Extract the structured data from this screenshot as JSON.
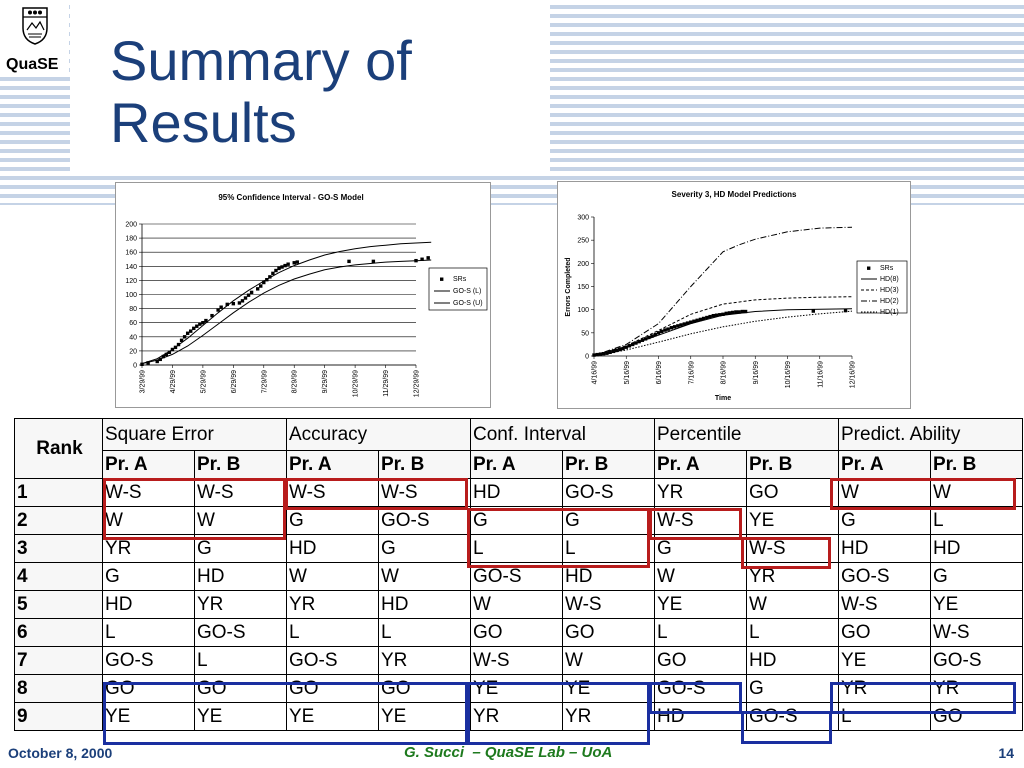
{
  "logo": {
    "text": "QuaSE"
  },
  "slide": {
    "title_line1": "Summary of",
    "title_line2": "Results"
  },
  "chart_data": [
    {
      "type": "line",
      "title": "95% Confidence Interval - GO-S Model",
      "x_ticks": [
        "3/29/99",
        "4/29/99",
        "5/29/99",
        "6/29/99",
        "7/29/99",
        "8/29/99",
        "9/29/99",
        "10/29/99",
        "11/29/99",
        "12/29/99"
      ],
      "y_ticks": [
        0,
        20,
        40,
        60,
        80,
        100,
        120,
        140,
        160,
        180,
        200
      ],
      "ylim": [
        0,
        200
      ],
      "grid": true,
      "legend_position": "right",
      "legend": [
        "SRs",
        "GO-S (L)",
        "GO-S (U)"
      ],
      "series": [
        {
          "name": "SRs",
          "kind": "scatter",
          "x": [
            0.0,
            0.2,
            0.5,
            0.6,
            0.7,
            0.8,
            0.9,
            1.0,
            1.1,
            1.2,
            1.3,
            1.4,
            1.5,
            1.6,
            1.7,
            1.8,
            1.9,
            2.0,
            2.1,
            2.3,
            2.5,
            2.6,
            2.8,
            3.0,
            3.2,
            3.3,
            3.4,
            3.5,
            3.6,
            3.8,
            3.9,
            4.0,
            4.1,
            4.2,
            4.3,
            4.4,
            4.5,
            4.6,
            4.7,
            4.8,
            5.0,
            5.1,
            6.8,
            7.6,
            9.0,
            9.2,
            9.4
          ],
          "values": [
            1,
            3,
            5,
            8,
            12,
            15,
            18,
            22,
            25,
            29,
            35,
            40,
            45,
            48,
            52,
            55,
            58,
            60,
            63,
            70,
            78,
            82,
            86,
            87,
            88,
            91,
            95,
            99,
            103,
            108,
            112,
            117,
            121,
            125,
            130,
            134,
            137,
            139,
            141,
            143,
            145,
            146,
            147,
            147,
            148,
            150,
            152
          ]
        },
        {
          "name": "GO-S (L)",
          "kind": "line",
          "x": [
            0,
            0.5,
            1,
            1.5,
            2,
            2.5,
            3,
            3.5,
            4,
            4.5,
            5,
            5.5,
            6,
            6.5,
            7,
            7.5,
            8,
            8.5,
            9,
            9.5
          ],
          "values": [
            2,
            7,
            15,
            27,
            42,
            58,
            74,
            89,
            102,
            113,
            122,
            129,
            135,
            139,
            142,
            144,
            146,
            147,
            148,
            149
          ]
        },
        {
          "name": "GO-S (U)",
          "kind": "line",
          "x": [
            0,
            0.5,
            1,
            1.5,
            2,
            2.5,
            3,
            3.5,
            4,
            4.5,
            5,
            5.5,
            6,
            6.5,
            7,
            7.5,
            8,
            8.5,
            9,
            9.5
          ],
          "values": [
            2,
            9,
            22,
            38,
            56,
            74,
            91,
            106,
            119,
            131,
            141,
            149,
            156,
            161,
            165,
            168,
            170,
            172,
            173,
            174
          ]
        }
      ]
    },
    {
      "type": "line",
      "title": "Severity 3, HD Model Predictions",
      "xlabel": "Time",
      "ylabel": "Errors Completed",
      "x_ticks": [
        "4/16/99",
        "5/16/99",
        "6/16/99",
        "7/16/99",
        "8/16/99",
        "9/16/99",
        "10/16/99",
        "11/16/99",
        "12/16/99"
      ],
      "y_ticks": [
        0,
        50,
        100,
        150,
        200,
        250,
        300
      ],
      "ylim": [
        0,
        300
      ],
      "legend_position": "right",
      "legend": [
        "SRs",
        "HD(8)",
        "HD(3)",
        "HD(2)",
        "HD(1)"
      ],
      "series": [
        {
          "name": "SRs",
          "kind": "scatter",
          "x": [
            0.0,
            0.1,
            0.2,
            0.3,
            0.4,
            0.5,
            0.6,
            0.7,
            0.8,
            0.9,
            1.0,
            1.1,
            1.2,
            1.3,
            1.4,
            1.5,
            1.6,
            1.7,
            1.8,
            1.9,
            2.0,
            2.1,
            2.2,
            2.3,
            2.4,
            2.5,
            2.6,
            2.7,
            2.8,
            2.9,
            3.0,
            3.1,
            3.2,
            3.3,
            3.4,
            3.5,
            3.6,
            3.7,
            3.8,
            3.9,
            4.0,
            4.1,
            4.2,
            4.3,
            4.4,
            4.5,
            4.6,
            4.7,
            6.8,
            7.8
          ],
          "values": [
            2,
            3,
            4,
            5,
            6,
            8,
            10,
            12,
            14,
            16,
            19,
            22,
            25,
            28,
            31,
            34,
            37,
            40,
            43,
            46,
            50,
            53,
            56,
            58,
            61,
            63,
            65,
            67,
            69,
            71,
            73,
            75,
            77,
            79,
            81,
            83,
            85,
            87,
            88,
            89,
            90,
            92,
            93,
            94,
            95,
            95,
            96,
            96,
            97,
            98
          ]
        },
        {
          "name": "HD(8)",
          "kind": "line",
          "x": [
            0,
            1,
            2,
            3,
            4,
            5,
            6,
            7,
            8
          ],
          "values": [
            1,
            20,
            45,
            70,
            88,
            96,
            100,
            101,
            102
          ]
        },
        {
          "name": "HD(3)",
          "kind": "line",
          "x": [
            0,
            1,
            2,
            3,
            4,
            5,
            6,
            7,
            8
          ],
          "values": [
            1,
            22,
            55,
            90,
            112,
            121,
            125,
            127,
            128
          ]
        },
        {
          "name": "HD(2)",
          "kind": "line",
          "x": [
            0,
            1,
            2,
            3,
            4,
            4.5,
            5,
            6,
            7,
            8
          ],
          "values": [
            1,
            25,
            70,
            150,
            225,
            240,
            252,
            268,
            276,
            278
          ]
        },
        {
          "name": "HD(1)",
          "kind": "line",
          "x": [
            0,
            1,
            2,
            3,
            4,
            5,
            6,
            7,
            8
          ],
          "values": [
            1,
            13,
            30,
            48,
            63,
            75,
            84,
            91,
            97
          ]
        }
      ]
    }
  ],
  "table": {
    "corner": "Rank",
    "groups": [
      "Square Error",
      "Accuracy",
      "Conf. Interval",
      "Percentile",
      "Predict. Ability"
    ],
    "sub_a": "Pr. A",
    "sub_b": "Pr. B",
    "rows": [
      {
        "rank": "1",
        "cells": [
          "W-S",
          "W-S",
          "W-S",
          "W-S",
          "HD",
          "GO-S",
          "YR",
          "GO",
          "W",
          "W"
        ]
      },
      {
        "rank": "2",
        "cells": [
          "W",
          "W",
          "G",
          "GO-S",
          "G",
          "G",
          "W-S",
          "YE",
          "G",
          "L"
        ]
      },
      {
        "rank": "3",
        "cells": [
          "YR",
          "G",
          "HD",
          "G",
          "L",
          "L",
          "G",
          "W-S",
          "HD",
          "HD"
        ]
      },
      {
        "rank": "4",
        "cells": [
          "G",
          "HD",
          "W",
          "W",
          "GO-S",
          "HD",
          "W",
          "YR",
          "GO-S",
          "G"
        ]
      },
      {
        "rank": "5",
        "cells": [
          "HD",
          "YR",
          "YR",
          "HD",
          "W",
          "W-S",
          "YE",
          "W",
          "W-S",
          "YE"
        ]
      },
      {
        "rank": "6",
        "cells": [
          "L",
          "GO-S",
          "L",
          "L",
          "GO",
          "GO",
          "L",
          "L",
          "GO",
          "W-S"
        ]
      },
      {
        "rank": "7",
        "cells": [
          "GO-S",
          "L",
          "GO-S",
          "YR",
          "W-S",
          "W",
          "GO",
          "HD",
          "YE",
          "GO-S"
        ]
      },
      {
        "rank": "8",
        "cells": [
          "GO",
          "GO",
          "GO",
          "GO",
          "YE",
          "YE",
          "GO-S",
          "G",
          "YR",
          "YR"
        ]
      },
      {
        "rank": "9",
        "cells": [
          "YE",
          "YE",
          "YE",
          "YE",
          "YR",
          "YR",
          "HD",
          "GO-S",
          "L",
          "GO"
        ]
      }
    ]
  },
  "footer": {
    "date": "October 8, 2000",
    "center": "G. Succi  – QuaSE Lab – UoA",
    "page": "14"
  }
}
